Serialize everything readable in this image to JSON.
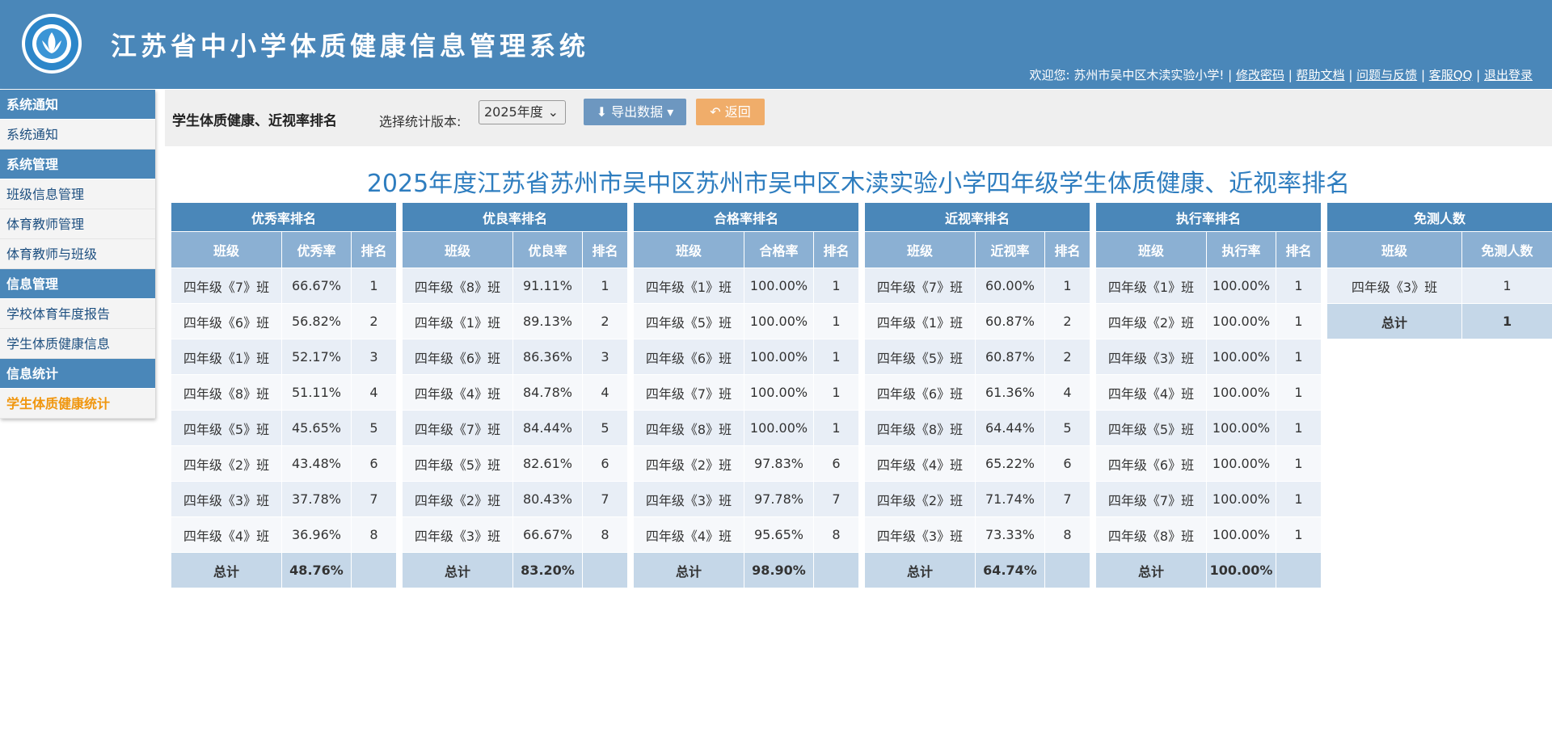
{
  "header": {
    "title": "江苏省中小学体质健康信息管理系统",
    "welcome": "欢迎您: 苏州市吴中区木渎实验小学!",
    "links": [
      "修改密码",
      "帮助文档",
      "问题与反馈",
      "客服QQ",
      "退出登录"
    ]
  },
  "sidebar": [
    {
      "title": "系统通知",
      "items": [
        "系统通知"
      ]
    },
    {
      "title": "系统管理",
      "items": [
        "班级信息管理",
        "体育教师管理",
        "体育教师与班级"
      ]
    },
    {
      "title": "信息管理",
      "items": [
        "学校体育年度报告",
        "学生体质健康信息"
      ]
    },
    {
      "title": "信息统计",
      "items": [
        "学生体质健康统计"
      ]
    }
  ],
  "toolbar": {
    "title": "学生体质健康、近视率排名",
    "version_label": "选择统计版本:",
    "version": "2025年度",
    "export": "导出数据",
    "back": "返回"
  },
  "page_title": "2025年度江苏省苏州市吴中区苏州市吴中区木渎实验小学四年级学生体质健康、近视率排名",
  "tables": [
    {
      "title": "优秀率排名",
      "columns": [
        "班级",
        "优秀率",
        "排名"
      ],
      "rows": [
        [
          "四年级《7》班",
          "66.67%",
          "1"
        ],
        [
          "四年级《6》班",
          "56.82%",
          "2"
        ],
        [
          "四年级《1》班",
          "52.17%",
          "3"
        ],
        [
          "四年级《8》班",
          "51.11%",
          "4"
        ],
        [
          "四年级《5》班",
          "45.65%",
          "5"
        ],
        [
          "四年级《2》班",
          "43.48%",
          "6"
        ],
        [
          "四年级《3》班",
          "37.78%",
          "7"
        ],
        [
          "四年级《4》班",
          "36.96%",
          "8"
        ]
      ],
      "total": {
        "label": "总计",
        "value": "48.76%"
      }
    },
    {
      "title": "优良率排名",
      "columns": [
        "班级",
        "优良率",
        "排名"
      ],
      "rows": [
        [
          "四年级《8》班",
          "91.11%",
          "1"
        ],
        [
          "四年级《1》班",
          "89.13%",
          "2"
        ],
        [
          "四年级《6》班",
          "86.36%",
          "3"
        ],
        [
          "四年级《4》班",
          "84.78%",
          "4"
        ],
        [
          "四年级《7》班",
          "84.44%",
          "5"
        ],
        [
          "四年级《5》班",
          "82.61%",
          "6"
        ],
        [
          "四年级《2》班",
          "80.43%",
          "7"
        ],
        [
          "四年级《3》班",
          "66.67%",
          "8"
        ]
      ],
      "total": {
        "label": "总计",
        "value": "83.20%"
      }
    },
    {
      "title": "合格率排名",
      "columns": [
        "班级",
        "合格率",
        "排名"
      ],
      "rows": [
        [
          "四年级《1》班",
          "100.00%",
          "1"
        ],
        [
          "四年级《5》班",
          "100.00%",
          "1"
        ],
        [
          "四年级《6》班",
          "100.00%",
          "1"
        ],
        [
          "四年级《7》班",
          "100.00%",
          "1"
        ],
        [
          "四年级《8》班",
          "100.00%",
          "1"
        ],
        [
          "四年级《2》班",
          "97.83%",
          "6"
        ],
        [
          "四年级《3》班",
          "97.78%",
          "7"
        ],
        [
          "四年级《4》班",
          "95.65%",
          "8"
        ]
      ],
      "total": {
        "label": "总计",
        "value": "98.90%"
      }
    },
    {
      "title": "近视率排名",
      "columns": [
        "班级",
        "近视率",
        "排名"
      ],
      "rows": [
        [
          "四年级《7》班",
          "60.00%",
          "1"
        ],
        [
          "四年级《1》班",
          "60.87%",
          "2"
        ],
        [
          "四年级《5》班",
          "60.87%",
          "2"
        ],
        [
          "四年级《6》班",
          "61.36%",
          "4"
        ],
        [
          "四年级《8》班",
          "64.44%",
          "5"
        ],
        [
          "四年级《4》班",
          "65.22%",
          "6"
        ],
        [
          "四年级《2》班",
          "71.74%",
          "7"
        ],
        [
          "四年级《3》班",
          "73.33%",
          "8"
        ]
      ],
      "total": {
        "label": "总计",
        "value": "64.74%"
      }
    },
    {
      "title": "执行率排名",
      "columns": [
        "班级",
        "执行率",
        "排名"
      ],
      "rows": [
        [
          "四年级《1》班",
          "100.00%",
          "1"
        ],
        [
          "四年级《2》班",
          "100.00%",
          "1"
        ],
        [
          "四年级《3》班",
          "100.00%",
          "1"
        ],
        [
          "四年级《4》班",
          "100.00%",
          "1"
        ],
        [
          "四年级《5》班",
          "100.00%",
          "1"
        ],
        [
          "四年级《6》班",
          "100.00%",
          "1"
        ],
        [
          "四年级《7》班",
          "100.00%",
          "1"
        ],
        [
          "四年级《8》班",
          "100.00%",
          "1"
        ]
      ],
      "total": {
        "label": "总计",
        "value": "100.00%"
      }
    },
    {
      "title": "免测人数",
      "columns": [
        "班级",
        "免测人数"
      ],
      "rows": [
        [
          "四年级《3》班",
          "1"
        ]
      ],
      "total": {
        "label": "总计",
        "value": "1"
      }
    }
  ]
}
